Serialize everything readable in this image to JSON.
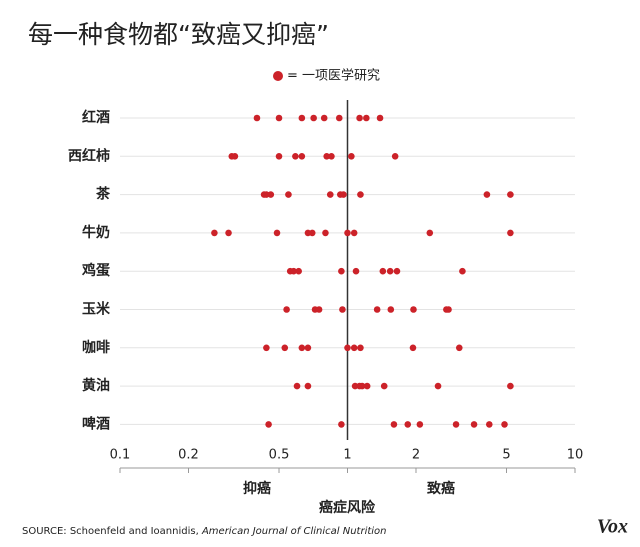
{
  "chart_data": {
    "type": "dotplot",
    "title": "每一种食物都“致癌又抑癌”",
    "legend": "= 一项医学研究",
    "color": "#cc2229",
    "categories": [
      "红酒",
      "西红柿",
      "茶",
      "牛奶",
      "鸡蛋",
      "玉米",
      "咖啡",
      "黄油",
      "啤酒"
    ],
    "values": [
      [
        0.4,
        0.5,
        0.63,
        0.71,
        0.79,
        0.92,
        1.13,
        1.21,
        1.39
      ],
      [
        0.31,
        0.32,
        0.5,
        0.59,
        0.63,
        0.81,
        0.85,
        1.04,
        1.62
      ],
      [
        0.43,
        0.44,
        0.46,
        0.55,
        0.84,
        0.93,
        0.96,
        1.14,
        4.1,
        5.2
      ],
      [
        0.26,
        0.3,
        0.49,
        0.67,
        0.7,
        0.8,
        1.0,
        1.07,
        2.3,
        5.2
      ],
      [
        0.56,
        0.58,
        0.61,
        0.94,
        1.09,
        1.43,
        1.54,
        1.65,
        3.2
      ],
      [
        0.54,
        0.72,
        0.75,
        0.95,
        1.35,
        1.55,
        1.95,
        2.72,
        2.78
      ],
      [
        0.44,
        0.53,
        0.63,
        0.67,
        1.0,
        1.07,
        1.14,
        1.94,
        3.1
      ],
      [
        0.6,
        0.67,
        1.08,
        1.13,
        1.16,
        1.22,
        1.45,
        2.5,
        5.2
      ],
      [
        0.45,
        0.94,
        1.6,
        1.84,
        2.08,
        3.0,
        3.6,
        4.2,
        4.9
      ]
    ],
    "xlim": [
      0.1,
      10
    ],
    "xticks": [
      0.1,
      0.2,
      0.5,
      1,
      2,
      5,
      10
    ],
    "log_x": true,
    "grid": true,
    "reference_line": 1,
    "annotations": [
      "抑癌",
      "致癌"
    ],
    "x_label": "癌症风险",
    "source_prefix": "SOURCE: Schoenfeld and Ioannidis, ",
    "source_journal": "American Journal of Clinical Nutrition",
    "logo": "Vox"
  }
}
